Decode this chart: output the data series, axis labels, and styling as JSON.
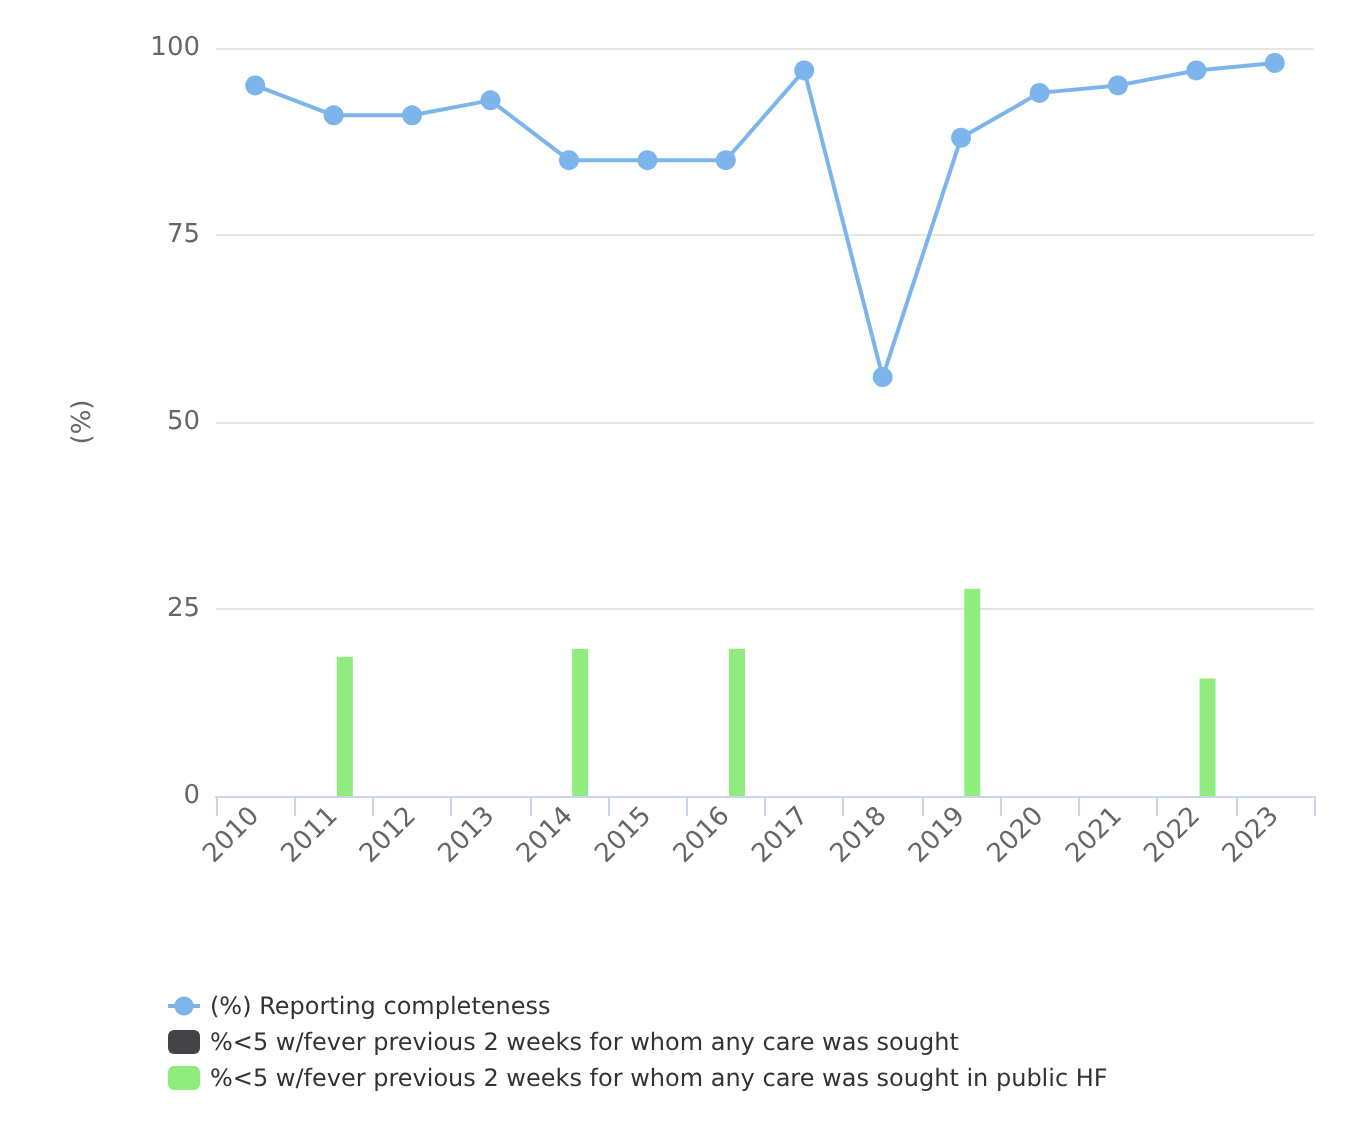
{
  "chart_data": {
    "type": "bar",
    "ylabel": "(%)",
    "categories": [
      "2010",
      "2011",
      "2012",
      "2013",
      "2014",
      "2015",
      "2016",
      "2017",
      "2018",
      "2019",
      "2020",
      "2021",
      "2022",
      "2023"
    ],
    "series": [
      {
        "name": "(%) Reporting completeness",
        "type": "line",
        "color": "#7cb5ec",
        "values": [
          95,
          91,
          91,
          93,
          85,
          85,
          85,
          97,
          56,
          88,
          94,
          95,
          97,
          98
        ]
      },
      {
        "name": "%<5 w/fever previous 2 weeks for whom any care was sought",
        "color": "#434348",
        "values": [
          null,
          null,
          null,
          null,
          null,
          null,
          null,
          null,
          null,
          null,
          null,
          null,
          null,
          null
        ]
      },
      {
        "name": "%<5 w/fever previous 2 weeks for whom any care was sought in public HF",
        "color": "#90ed7d",
        "values": [
          null,
          18.6,
          null,
          null,
          19.7,
          null,
          19.7,
          null,
          null,
          27.7,
          null,
          null,
          15.7,
          null
        ]
      }
    ],
    "ylim": [
      0,
      100
    ],
    "yticks": [
      0,
      25,
      50,
      75,
      100
    ],
    "grid": "y",
    "legend": "bottom left",
    "marker": "circle"
  }
}
